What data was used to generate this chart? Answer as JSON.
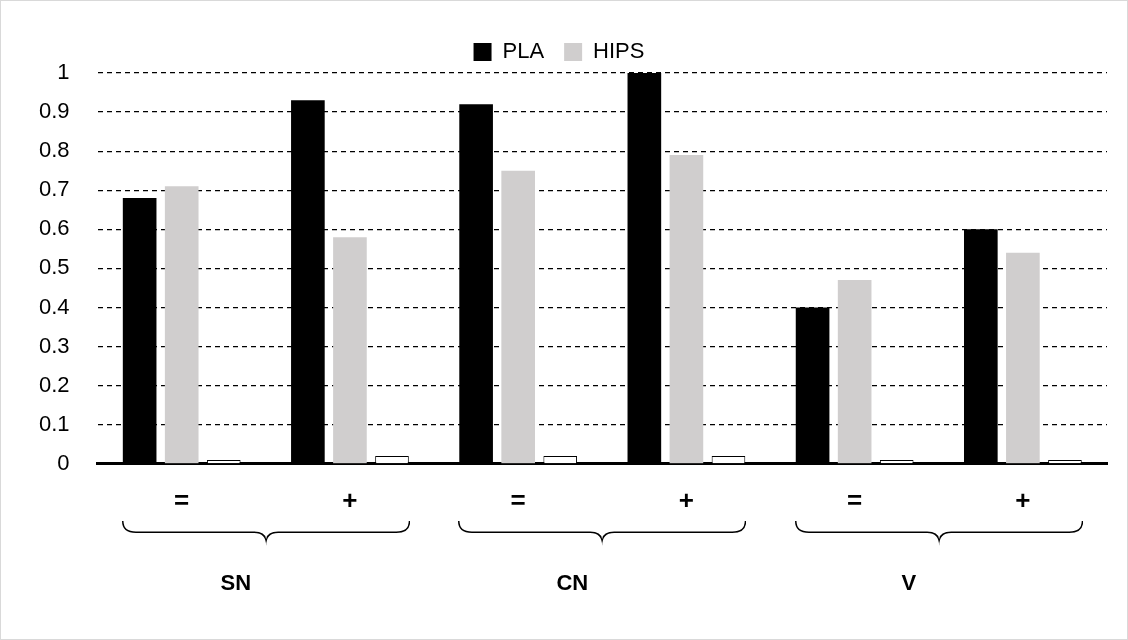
{
  "chart_data": {
    "type": "bar",
    "categories": [
      "=",
      "+",
      "=",
      "+",
      "=",
      "+"
    ],
    "series": [
      {
        "name": "PLA",
        "color": "#000000",
        "values": [
          0.68,
          0.93,
          0.92,
          1.0,
          0.4,
          0.6
        ]
      },
      {
        "name": "HIPS",
        "color": "#d0cece",
        "values": [
          0.71,
          0.58,
          0.75,
          0.79,
          0.47,
          0.54
        ]
      },
      {
        "color": "#ffffff",
        "values": [
          0.01,
          0.02,
          0.02,
          0.02,
          0.01,
          0.01
        ]
      }
    ],
    "ylim": [
      0,
      1
    ],
    "yticks": [
      0,
      0.1,
      0.2,
      0.3,
      0.4,
      0.5,
      0.6,
      0.7,
      0.8,
      0.9,
      {
        "value": 1,
        "label": "1"
      }
    ],
    "grid": "y",
    "legend": "top",
    "annotations": [
      "SN",
      "CN",
      "V"
    ]
  }
}
